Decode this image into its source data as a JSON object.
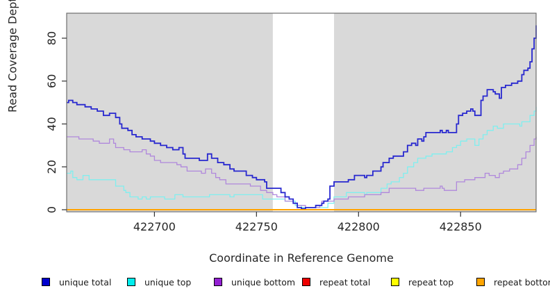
{
  "chart_data": {
    "type": "line",
    "style": "step",
    "title": "",
    "xlabel": "Coordinate in Reference Genome",
    "ylabel": "Read Coverage Depth",
    "xlim": [
      422657,
      422887
    ],
    "ylim": [
      0,
      92
    ],
    "x_ticks": [
      422700,
      422750,
      422800,
      422850
    ],
    "x_tick_labels": [
      "422700",
      "422750",
      "422800",
      "422850"
    ],
    "y_ticks": [
      0,
      20,
      40,
      60,
      80
    ],
    "y_tick_labels": [
      "0",
      "20",
      "40",
      "60",
      "80"
    ],
    "grid": false,
    "plot_background": "#d9d9d9",
    "highlight_band": {
      "x0": 422758,
      "x1": 422788,
      "color": "#ffffff",
      "note": "white band over gray plot background"
    },
    "legend_position": "bottom",
    "legend": [
      {
        "label": "unique total",
        "swatch_color": "#0000cd"
      },
      {
        "label": "unique top",
        "swatch_color": "#00eeee"
      },
      {
        "label": "unique bottom",
        "swatch_color": "#9420d3"
      },
      {
        "label": "repeat total",
        "swatch_color": "#ee0000"
      },
      {
        "label": "repeat top",
        "swatch_color": "#ffff00"
      },
      {
        "label": "repeat bottom",
        "swatch_color": "#ffa500"
      }
    ],
    "series": [
      {
        "name": "repeat total",
        "color": "#dd0000",
        "points": [
          [
            422657,
            0
          ],
          [
            422887,
            0
          ]
        ]
      },
      {
        "name": "repeat top",
        "color": "#ffff00",
        "points": [
          [
            422657,
            0
          ],
          [
            422887,
            0
          ]
        ]
      },
      {
        "name": "unique top",
        "color": "#7fefef",
        "points": [
          [
            422657,
            17
          ],
          [
            422659,
            18
          ],
          [
            422660,
            15
          ],
          [
            422662,
            14
          ],
          [
            422665,
            16
          ],
          [
            422668,
            14
          ],
          [
            422681,
            11
          ],
          [
            422685,
            9
          ],
          [
            422686,
            8
          ],
          [
            422688,
            6
          ],
          [
            422692,
            5
          ],
          [
            422694,
            6
          ],
          [
            422696,
            5
          ],
          [
            422698,
            6
          ],
          [
            422705,
            5
          ],
          [
            422710,
            7
          ],
          [
            422714,
            6
          ],
          [
            422727,
            7
          ],
          [
            422737,
            6
          ],
          [
            422739,
            7
          ],
          [
            422753,
            5
          ],
          [
            422764,
            4
          ],
          [
            422769,
            2
          ],
          [
            422772,
            1
          ],
          [
            422785,
            3
          ],
          [
            422788,
            6
          ],
          [
            422794,
            8
          ],
          [
            422803,
            7
          ],
          [
            422804,
            8
          ],
          [
            422811,
            10
          ],
          [
            422814,
            12
          ],
          [
            422816,
            13
          ],
          [
            422820,
            15
          ],
          [
            422822,
            17
          ],
          [
            422824,
            20
          ],
          [
            422827,
            22
          ],
          [
            422829,
            24
          ],
          [
            422833,
            25
          ],
          [
            422836,
            26
          ],
          [
            422843,
            27
          ],
          [
            422846,
            29
          ],
          [
            422848,
            30
          ],
          [
            422850,
            32
          ],
          [
            422853,
            33
          ],
          [
            422857,
            30
          ],
          [
            422859,
            33
          ],
          [
            422861,
            35
          ],
          [
            422863,
            37
          ],
          [
            422866,
            39
          ],
          [
            422868,
            38
          ],
          [
            422871,
            40
          ],
          [
            422879,
            39
          ],
          [
            422880,
            41
          ],
          [
            422884,
            44
          ],
          [
            422886,
            46
          ],
          [
            422887,
            48
          ]
        ]
      },
      {
        "name": "unique bottom",
        "color": "#b088dc",
        "points": [
          [
            422657,
            34
          ],
          [
            422663,
            33
          ],
          [
            422670,
            32
          ],
          [
            422673,
            31
          ],
          [
            422678,
            33
          ],
          [
            422680,
            31
          ],
          [
            422681,
            29
          ],
          [
            422685,
            28
          ],
          [
            422688,
            27
          ],
          [
            422694,
            28
          ],
          [
            422696,
            26
          ],
          [
            422698,
            25
          ],
          [
            422700,
            23
          ],
          [
            422703,
            22
          ],
          [
            422711,
            21
          ],
          [
            422713,
            20
          ],
          [
            422716,
            18
          ],
          [
            422723,
            17
          ],
          [
            422725,
            19
          ],
          [
            422728,
            17
          ],
          [
            422730,
            15
          ],
          [
            422732,
            14
          ],
          [
            422735,
            12
          ],
          [
            422747,
            11
          ],
          [
            422752,
            9
          ],
          [
            422755,
            8
          ],
          [
            422758,
            7
          ],
          [
            422760,
            6
          ],
          [
            422764,
            4
          ],
          [
            422768,
            3
          ],
          [
            422770,
            2
          ],
          [
            422774,
            1
          ],
          [
            422781,
            2
          ],
          [
            422782,
            4
          ],
          [
            422788,
            5
          ],
          [
            422795,
            6
          ],
          [
            422803,
            7
          ],
          [
            422811,
            8
          ],
          [
            422815,
            10
          ],
          [
            422828,
            9
          ],
          [
            422832,
            10
          ],
          [
            422840,
            11
          ],
          [
            422841,
            10
          ],
          [
            422842,
            9
          ],
          [
            422848,
            13
          ],
          [
            422852,
            14
          ],
          [
            422857,
            15
          ],
          [
            422862,
            17
          ],
          [
            422864,
            16
          ],
          [
            422867,
            15
          ],
          [
            422869,
            17
          ],
          [
            422871,
            18
          ],
          [
            422874,
            19
          ],
          [
            422878,
            21
          ],
          [
            422880,
            24
          ],
          [
            422882,
            27
          ],
          [
            422884,
            30
          ],
          [
            422886,
            33
          ],
          [
            422887,
            34
          ]
        ]
      },
      {
        "name": "unique total",
        "color": "#2727cf",
        "points": [
          [
            422657,
            50
          ],
          [
            422658,
            51
          ],
          [
            422660,
            50
          ],
          [
            422662,
            49
          ],
          [
            422666,
            48
          ],
          [
            422669,
            47
          ],
          [
            422672,
            46
          ],
          [
            422675,
            44
          ],
          [
            422678,
            45
          ],
          [
            422681,
            43
          ],
          [
            422683,
            40
          ],
          [
            422684,
            38
          ],
          [
            422687,
            37
          ],
          [
            422689,
            35
          ],
          [
            422691,
            34
          ],
          [
            422694,
            33
          ],
          [
            422698,
            32
          ],
          [
            422700,
            31
          ],
          [
            422703,
            30
          ],
          [
            422706,
            29
          ],
          [
            422709,
            28
          ],
          [
            422712,
            29
          ],
          [
            422714,
            26
          ],
          [
            422715,
            24
          ],
          [
            422722,
            23
          ],
          [
            422726,
            26
          ],
          [
            422728,
            24
          ],
          [
            422731,
            22
          ],
          [
            422734,
            21
          ],
          [
            422737,
            19
          ],
          [
            422739,
            18
          ],
          [
            422745,
            16
          ],
          [
            422748,
            15
          ],
          [
            422750,
            14
          ],
          [
            422754,
            13
          ],
          [
            422755,
            10
          ],
          [
            422762,
            8
          ],
          [
            422764,
            6
          ],
          [
            422766,
            5
          ],
          [
            422768,
            3
          ],
          [
            422770,
            1
          ],
          [
            422772,
            0.5
          ],
          [
            422774,
            1
          ],
          [
            422779,
            2
          ],
          [
            422782,
            3
          ],
          [
            422783,
            4
          ],
          [
            422785,
            5
          ],
          [
            422786,
            11
          ],
          [
            422788,
            13
          ],
          [
            422795,
            14
          ],
          [
            422798,
            16
          ],
          [
            422803,
            15
          ],
          [
            422804,
            16
          ],
          [
            422807,
            18
          ],
          [
            422811,
            20
          ],
          [
            422812,
            22
          ],
          [
            422815,
            24
          ],
          [
            422817,
            25
          ],
          [
            422822,
            27
          ],
          [
            422824,
            30
          ],
          [
            422826,
            31
          ],
          [
            422828,
            30
          ],
          [
            422829,
            33
          ],
          [
            422831,
            32
          ],
          [
            422832,
            34
          ],
          [
            422833,
            36
          ],
          [
            422840,
            37
          ],
          [
            422841,
            36
          ],
          [
            422843,
            37
          ],
          [
            422844,
            36
          ],
          [
            422848,
            40
          ],
          [
            422849,
            44
          ],
          [
            422851,
            45
          ],
          [
            422853,
            46
          ],
          [
            422855,
            47
          ],
          [
            422856,
            46
          ],
          [
            422857,
            44
          ],
          [
            422860,
            51
          ],
          [
            422861,
            53
          ],
          [
            422863,
            56
          ],
          [
            422866,
            55
          ],
          [
            422867,
            54
          ],
          [
            422869,
            52
          ],
          [
            422870,
            57
          ],
          [
            422872,
            58
          ],
          [
            422875,
            59
          ],
          [
            422878,
            60
          ],
          [
            422880,
            63
          ],
          [
            422881,
            65
          ],
          [
            422883,
            66
          ],
          [
            422884,
            69
          ],
          [
            422885,
            75
          ],
          [
            422886,
            80
          ],
          [
            422887,
            86
          ]
        ]
      },
      {
        "name": "repeat bottom",
        "color": "#ffa200",
        "points": [
          [
            422657,
            0
          ],
          [
            422887,
            0
          ]
        ]
      }
    ]
  }
}
